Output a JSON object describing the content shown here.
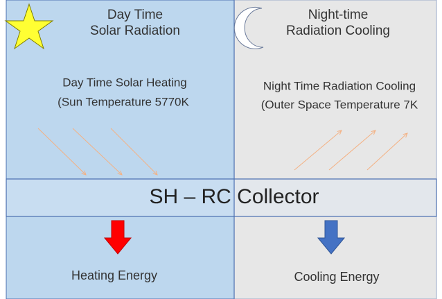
{
  "day": {
    "title": [
      "Day Time",
      "Solar Radiation"
    ],
    "description": [
      "Day Time Solar Heating",
      "(Sun Temperature 5770K"
    ],
    "output": "Heating Energy"
  },
  "night": {
    "title": [
      "Night-time",
      "Radiation Cooling"
    ],
    "description": [
      "Night Time Radiation Cooling",
      "(Outer Space Temperature 7K"
    ],
    "output": "Cooling Energy"
  },
  "collector": {
    "label": "SH – RC Collector"
  }
}
